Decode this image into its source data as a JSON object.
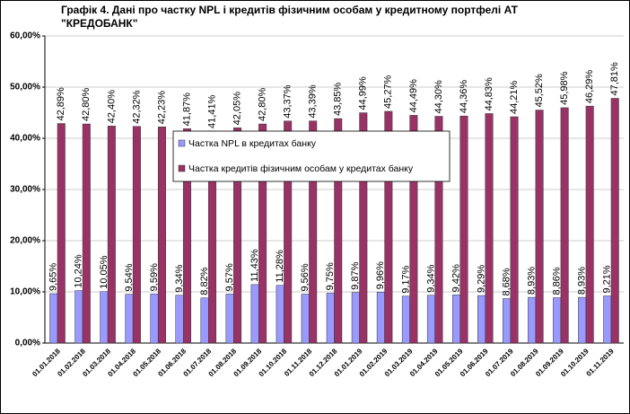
{
  "chart_data": {
    "type": "bar",
    "title": "Графік 4. Дані про частку NPL і кредитів фізичним особам у кредитному портфелі АТ \"КРЕДОБАНК\"",
    "categories": [
      "01.01.2018",
      "01.02.2018",
      "01.03.2018",
      "01.04.2018",
      "01.05.2018",
      "01.06.2018",
      "01.07.2018",
      "01.08.2018",
      "01.09.2018",
      "01.10.2018",
      "01.11.2018",
      "01.12.2018",
      "01.01.2019",
      "01.02.2019",
      "01.03.2019",
      "01.04.2019",
      "01.05.2019",
      "01.06.2019",
      "01.07.2019",
      "01.08.2019",
      "01.09.2019",
      "01.10.2019",
      "01.11.2019"
    ],
    "series": [
      {
        "name": "Частка NPL в кредитах банку",
        "color": "#9999ff",
        "values": [
          9.65,
          10.24,
          10.05,
          9.54,
          9.59,
          9.34,
          8.82,
          9.57,
          11.43,
          11.28,
          9.56,
          9.75,
          9.87,
          9.96,
          9.17,
          9.34,
          9.42,
          9.29,
          8.68,
          8.93,
          8.86,
          8.93,
          9.21
        ],
        "value_labels": [
          "9,65%",
          "10,24%",
          "10,05%",
          "9,54%",
          "9,59%",
          "9,34%",
          "8,82%",
          "9,57%",
          "11,43%",
          "11,28%",
          "9,56%",
          "9,75%",
          "9,87%",
          "9,96%",
          "9,17%",
          "9,34%",
          "9,42%",
          "9,29%",
          "8,68%",
          "8,93%",
          "8,86%",
          "8,93%",
          "9,21%"
        ]
      },
      {
        "name": "Частка кредитів фізичним особам у кредитах банку",
        "color": "#993366",
        "values": [
          42.89,
          42.8,
          42.4,
          42.32,
          42.23,
          41.87,
          41.41,
          42.05,
          42.8,
          43.37,
          43.39,
          43.85,
          44.99,
          45.27,
          44.49,
          44.3,
          44.36,
          44.83,
          44.21,
          45.52,
          45.98,
          46.29,
          47.81
        ],
        "value_labels": [
          "42,89%",
          "42,80%",
          "42,40%",
          "42,32%",
          "42,23%",
          "41,87%",
          "41,41%",
          "42,05%",
          "42,80%",
          "43,37%",
          "43,39%",
          "43,85%",
          "44,99%",
          "45,27%",
          "44,49%",
          "44,30%",
          "44,36%",
          "44,83%",
          "44,21%",
          "45,52%",
          "45,98%",
          "46,29%",
          "47,81%"
        ]
      }
    ],
    "ylim": [
      0,
      60
    ],
    "yticks": [
      {
        "value": 0,
        "label": "0,00%"
      },
      {
        "value": 10,
        "label": "10,00%"
      },
      {
        "value": 20,
        "label": "20,00%"
      },
      {
        "value": 30,
        "label": "30,00%"
      },
      {
        "value": 40,
        "label": "40,00%"
      },
      {
        "value": 50,
        "label": "50,00%"
      },
      {
        "value": 60,
        "label": "60,00%"
      }
    ],
    "grid": true
  }
}
